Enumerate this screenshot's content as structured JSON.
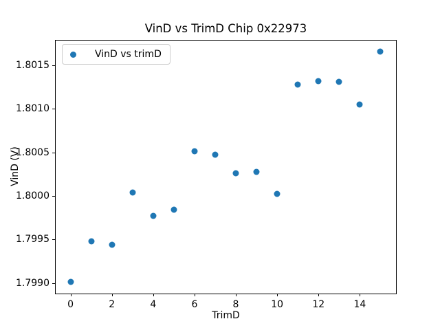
{
  "chart_data": {
    "type": "scatter",
    "title": "VinD vs TrimD Chip 0x22973",
    "xlabel": "TrimD",
    "ylabel": "VinD (V)",
    "xlim": [
      -0.75,
      15.75
    ],
    "ylim": [
      1.798878,
      1.801793
    ],
    "xticks": [
      0,
      2,
      4,
      6,
      8,
      10,
      12,
      14
    ],
    "yticks": [
      1.799,
      1.7995,
      1.8,
      1.8005,
      1.801,
      1.8015
    ],
    "ytick_labels": [
      "1.7990",
      "1.7995",
      "1.8000",
      "1.8005",
      "1.8010",
      "1.8015"
    ],
    "grid": false,
    "legend": {
      "position": "upper left",
      "entries": [
        "VinD vs trimD"
      ]
    },
    "series": [
      {
        "name": "VinD vs trimD",
        "marker": "circle",
        "color": "#1f77b4",
        "x": [
          0,
          1,
          2,
          3,
          4,
          5,
          6,
          7,
          8,
          9,
          10,
          11,
          12,
          13,
          14,
          15
        ],
        "y": [
          1.79901,
          1.79948,
          1.79944,
          1.80004,
          1.79977,
          1.79984,
          1.80051,
          1.80047,
          1.80026,
          1.80028,
          1.80002,
          1.80128,
          1.80132,
          1.80131,
          1.80105,
          1.80166
        ]
      }
    ]
  }
}
